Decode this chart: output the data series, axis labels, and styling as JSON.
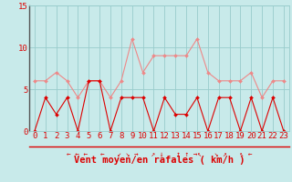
{
  "hours": [
    0,
    1,
    2,
    3,
    4,
    5,
    6,
    7,
    8,
    9,
    10,
    11,
    12,
    13,
    14,
    15,
    16,
    17,
    18,
    19,
    20,
    21,
    22,
    23
  ],
  "wind_avg": [
    0,
    4,
    2,
    4,
    0,
    6,
    6,
    0,
    4,
    4,
    4,
    0,
    4,
    2,
    2,
    4,
    0,
    4,
    4,
    0,
    4,
    0,
    4,
    0
  ],
  "wind_gust": [
    6,
    6,
    7,
    6,
    4,
    6,
    6,
    4,
    6,
    11,
    7,
    9,
    9,
    9,
    9,
    11,
    7,
    6,
    6,
    6,
    7,
    4,
    6,
    6
  ],
  "color_avg": "#dd0000",
  "color_gust": "#ee8888",
  "bg_color": "#c8eaea",
  "grid_color": "#99cccc",
  "xlabel": "Vent moyen/en rafales ( km/h )",
  "ylim": [
    0,
    15
  ],
  "yticks": [
    0,
    5,
    10,
    15
  ],
  "tick_fontsize": 6.5,
  "label_fontsize": 7.5,
  "arrow_symbols": [
    "←",
    "←",
    "←",
    "←",
    "↙",
    "↘",
    "→",
    "↗",
    "↓",
    "↑",
    "→",
    "↖",
    "↘",
    "↗",
    "↖",
    "←"
  ]
}
